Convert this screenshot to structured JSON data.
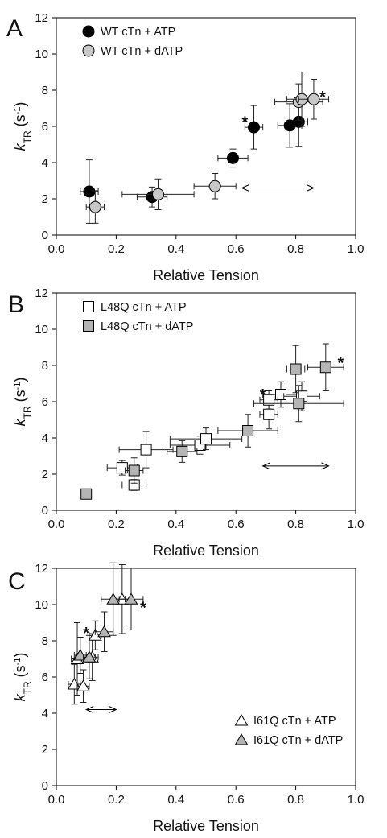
{
  "figure": {
    "xlabel": "Relative Tension",
    "ylabel_main": "k",
    "ylabel_sub": "TR",
    "ylabel_unit": " (s",
    "ylabel_exp": "-1",
    "ylabel_close": ")"
  },
  "chart_data": [
    {
      "panel": "A",
      "type": "scatter",
      "xlabel": "Relative Tension",
      "ylabel": "kTR (s-1)",
      "xlim": [
        0.0,
        1.0
      ],
      "ylim": [
        0,
        12
      ],
      "xticks": [
        "0.0",
        "0.2",
        "0.4",
        "0.6",
        "0.8",
        "1.0"
      ],
      "yticks": [
        "0",
        "2",
        "4",
        "6",
        "8",
        "10",
        "12"
      ],
      "legend_position": "top-left",
      "series": [
        {
          "name": "WT cTn + ATP",
          "marker": "circle",
          "fill": "#000000",
          "points": [
            {
              "x": 0.11,
              "y": 2.4,
              "xerr": 0.03,
              "yerr": 1.75
            },
            {
              "x": 0.32,
              "y": 2.1,
              "xerr": 0.05,
              "yerr": 0.55
            },
            {
              "x": 0.59,
              "y": 4.25,
              "xerr": 0.05,
              "yerr": 0.5
            },
            {
              "x": 0.66,
              "y": 5.95,
              "xerr": 0.03,
              "yerr": 1.2
            },
            {
              "x": 0.78,
              "y": 6.05,
              "xerr": 0.04,
              "yerr": 1.2
            },
            {
              "x": 0.81,
              "y": 6.25,
              "xerr": 0.03,
              "yerr": 1.35
            }
          ]
        },
        {
          "name": "WT cTn + dATP",
          "marker": "circle",
          "fill": "#c8c8c8",
          "points": [
            {
              "x": 0.13,
              "y": 1.55,
              "xerr": 0.03,
              "yerr": 0.9
            },
            {
              "x": 0.34,
              "y": 2.25,
              "xerr": 0.12,
              "yerr": 0.85
            },
            {
              "x": 0.53,
              "y": 2.7,
              "xerr": 0.07,
              "yerr": 0.7
            },
            {
              "x": 0.81,
              "y": 7.35,
              "xerr": 0.08,
              "yerr": 1.0
            },
            {
              "x": 0.82,
              "y": 7.5,
              "xerr": 0.05,
              "yerr": 1.5
            },
            {
              "x": 0.86,
              "y": 7.5,
              "xerr": 0.05,
              "yerr": 1.1
            }
          ]
        }
      ],
      "annotations": [
        {
          "text": "*",
          "x": 0.63,
          "y": 6.3
        },
        {
          "text": "*",
          "x": 0.89,
          "y": 7.7
        }
      ],
      "range_arrow": {
        "x0": 0.62,
        "x1": 0.86,
        "y": 2.6
      }
    },
    {
      "panel": "B",
      "type": "scatter",
      "xlabel": "Relative Tension",
      "ylabel": "kTR (s-1)",
      "xlim": [
        0.0,
        1.0
      ],
      "ylim": [
        0,
        12
      ],
      "xticks": [
        "0.0",
        "0.2",
        "0.4",
        "0.6",
        "0.8",
        "1.0"
      ],
      "yticks": [
        "0",
        "2",
        "4",
        "6",
        "8",
        "10",
        "12"
      ],
      "legend_position": "top-left",
      "series": [
        {
          "name": "L48Q cTn + ATP",
          "marker": "square",
          "fill": "#ffffff",
          "points": [
            {
              "x": 0.22,
              "y": 2.35,
              "xerr": 0.05,
              "yerr": 0.4
            },
            {
              "x": 0.26,
              "y": 1.4,
              "xerr": 0.04,
              "yerr": 0.3
            },
            {
              "x": 0.3,
              "y": 3.35,
              "xerr": 0.09,
              "yerr": 1.0
            },
            {
              "x": 0.48,
              "y": 3.6,
              "xerr": 0.1,
              "yerr": 0.5
            },
            {
              "x": 0.5,
              "y": 3.95,
              "xerr": 0.12,
              "yerr": 0.6
            },
            {
              "x": 0.71,
              "y": 5.3,
              "xerr": 0.03,
              "yerr": 0.8
            },
            {
              "x": 0.75,
              "y": 6.4,
              "xerr": 0.06,
              "yerr": 0.7
            },
            {
              "x": 0.82,
              "y": 6.3,
              "xerr": 0.06,
              "yerr": 0.8
            },
            {
              "x": 0.71,
              "y": 6.1,
              "xerr": 0.03,
              "yerr": 0.5
            }
          ]
        },
        {
          "name": "L48Q cTn + dATP",
          "marker": "square",
          "fill": "#b4b4b4",
          "points": [
            {
              "x": 0.1,
              "y": 0.9,
              "xerr": 0.0,
              "yerr": 0.0
            },
            {
              "x": 0.26,
              "y": 2.2,
              "xerr": 0.03,
              "yerr": 0.7
            },
            {
              "x": 0.42,
              "y": 3.25,
              "xerr": 0.05,
              "yerr": 0.6
            },
            {
              "x": 0.64,
              "y": 4.4,
              "xerr": 0.1,
              "yerr": 0.9
            },
            {
              "x": 0.8,
              "y": 7.8,
              "xerr": 0.03,
              "yerr": 1.3
            },
            {
              "x": 0.81,
              "y": 5.9,
              "xerr": 0.15,
              "yerr": 1.0
            },
            {
              "x": 0.9,
              "y": 7.9,
              "xerr": 0.06,
              "yerr": 1.3
            }
          ]
        }
      ],
      "annotations": [
        {
          "text": "*",
          "x": 0.69,
          "y": 6.45
        },
        {
          "text": "*",
          "x": 0.95,
          "y": 8.2
        }
      ],
      "range_arrow": {
        "x0": 0.69,
        "x1": 0.91,
        "y": 2.45
      }
    },
    {
      "panel": "C",
      "type": "scatter",
      "xlabel": "Relative Tension",
      "ylabel": "kTR (s-1)",
      "xlim": [
        0.0,
        1.0
      ],
      "ylim": [
        0,
        12
      ],
      "xticks": [
        "0.0",
        "0.2",
        "0.4",
        "0.6",
        "0.8",
        "1.0"
      ],
      "yticks": [
        "0",
        "2",
        "4",
        "6",
        "8",
        "10",
        "12"
      ],
      "legend_position": "bottom-right",
      "series": [
        {
          "name": "I61Q cTn + ATP",
          "marker": "triangle",
          "fill": "#ffffff",
          "points": [
            {
              "x": 0.06,
              "y": 5.6,
              "xerr": 0.02,
              "yerr": 1.1
            },
            {
              "x": 0.09,
              "y": 5.5,
              "xerr": 0.02,
              "yerr": 0.9
            },
            {
              "x": 0.07,
              "y": 7.0,
              "xerr": 0.02,
              "yerr": 2.0
            },
            {
              "x": 0.12,
              "y": 7.1,
              "xerr": 0.02,
              "yerr": 1.3
            },
            {
              "x": 0.13,
              "y": 8.3,
              "xerr": 0.02,
              "yerr": 0.8
            },
            {
              "x": 0.22,
              "y": 10.3,
              "xerr": 0.03,
              "yerr": 1.9
            }
          ]
        },
        {
          "name": "I61Q cTn + dATP",
          "marker": "triangle",
          "fill": "#b4b4b4",
          "points": [
            {
              "x": 0.08,
              "y": 7.2,
              "xerr": 0.02,
              "yerr": 1.0
            },
            {
              "x": 0.11,
              "y": 7.1,
              "xerr": 0.02,
              "yerr": 1.2
            },
            {
              "x": 0.16,
              "y": 8.5,
              "xerr": 0.03,
              "yerr": 1.1
            },
            {
              "x": 0.19,
              "y": 10.3,
              "xerr": 0.04,
              "yerr": 2.0
            },
            {
              "x": 0.25,
              "y": 10.3,
              "xerr": 0.04,
              "yerr": 1.7
            }
          ]
        }
      ],
      "annotations": [
        {
          "text": "*",
          "x": 0.1,
          "y": 8.5
        },
        {
          "text": "*",
          "x": 0.29,
          "y": 9.9
        }
      ],
      "range_arrow": {
        "x0": 0.1,
        "x1": 0.2,
        "y": 4.2
      }
    }
  ]
}
